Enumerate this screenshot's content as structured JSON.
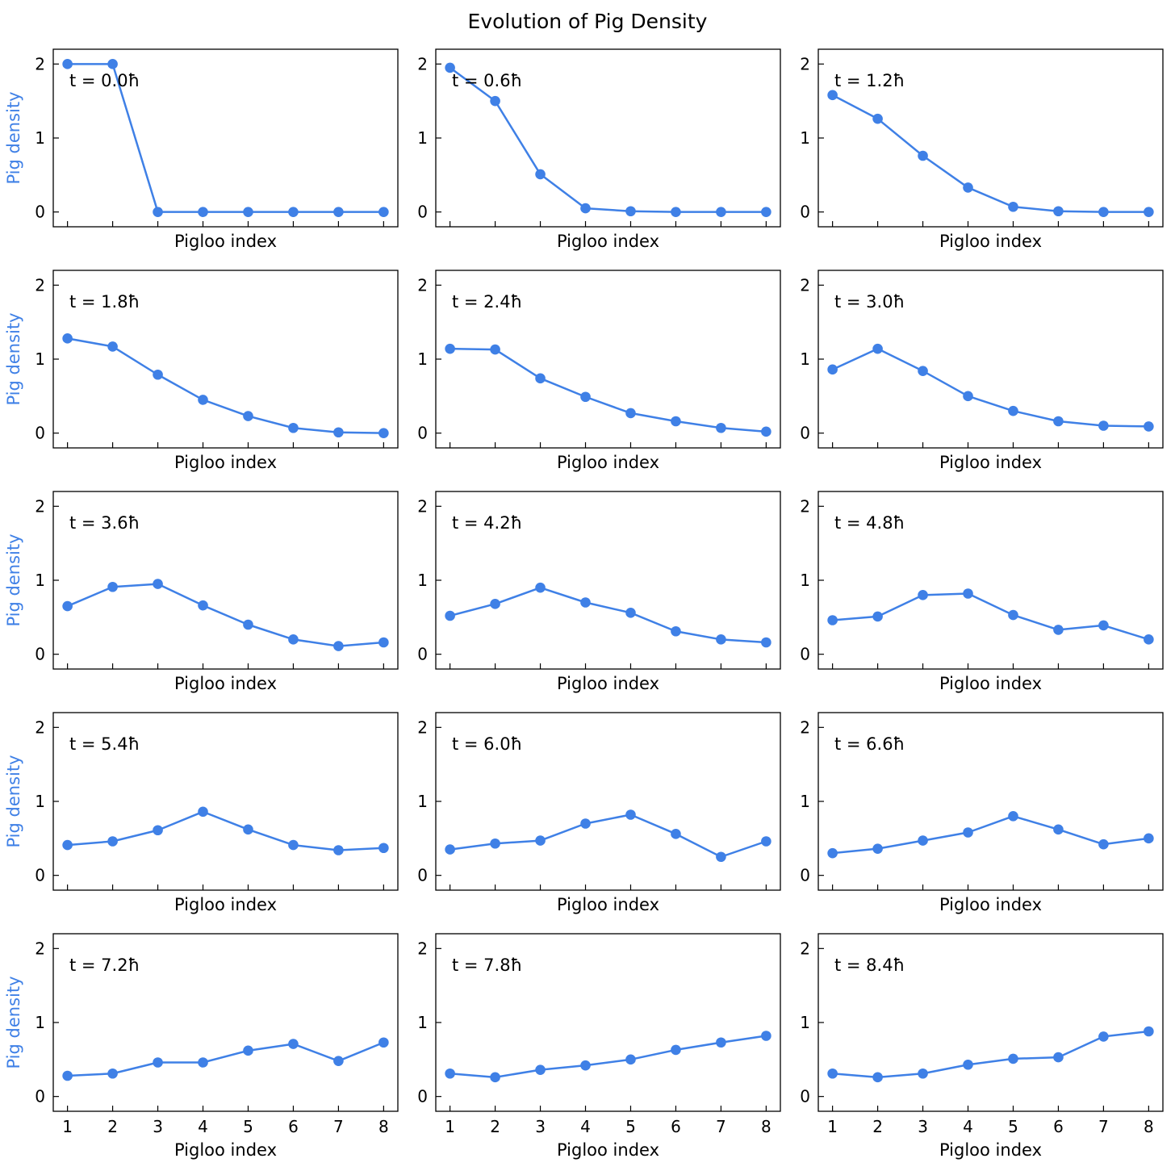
{
  "figure": {
    "title": "Evolution of Pig Density",
    "line_color": "#3F80E6",
    "ylabel_color": "#3F80E6"
  },
  "chart_data": [
    {
      "type": "line",
      "annotation": "t = 0.0ħ",
      "xlabel": "Pigloo index",
      "ylabel": "Pig density",
      "x": [
        1,
        2,
        3,
        4,
        5,
        6,
        7,
        8
      ],
      "ylim": [
        -0.2,
        2.2
      ],
      "yticks": [
        0,
        1,
        2
      ],
      "xtick_labels_shown": false,
      "values": [
        2.0,
        2.0,
        0.0,
        0.0,
        0.0,
        0.0,
        0.0,
        0.0
      ]
    },
    {
      "type": "line",
      "annotation": "t = 0.6ħ",
      "xlabel": "Pigloo index",
      "ylabel": "",
      "x": [
        1,
        2,
        3,
        4,
        5,
        6,
        7,
        8
      ],
      "ylim": [
        -0.2,
        2.2
      ],
      "yticks": [
        0,
        1,
        2
      ],
      "xtick_labels_shown": false,
      "values": [
        1.95,
        1.5,
        0.51,
        0.05,
        0.01,
        0.0,
        0.0,
        0.0
      ]
    },
    {
      "type": "line",
      "annotation": "t = 1.2ħ",
      "xlabel": "Pigloo index",
      "ylabel": "",
      "x": [
        1,
        2,
        3,
        4,
        5,
        6,
        7,
        8
      ],
      "ylim": [
        -0.2,
        2.2
      ],
      "yticks": [
        0,
        1,
        2
      ],
      "xtick_labels_shown": false,
      "values": [
        1.58,
        1.26,
        0.76,
        0.33,
        0.07,
        0.01,
        0.0,
        0.0
      ]
    },
    {
      "type": "line",
      "annotation": "t = 1.8ħ",
      "xlabel": "Pigloo index",
      "ylabel": "Pig density",
      "x": [
        1,
        2,
        3,
        4,
        5,
        6,
        7,
        8
      ],
      "ylim": [
        -0.2,
        2.2
      ],
      "yticks": [
        0,
        1,
        2
      ],
      "xtick_labels_shown": false,
      "values": [
        1.28,
        1.17,
        0.79,
        0.45,
        0.23,
        0.07,
        0.01,
        0.0
      ]
    },
    {
      "type": "line",
      "annotation": "t = 2.4ħ",
      "xlabel": "Pigloo index",
      "ylabel": "",
      "x": [
        1,
        2,
        3,
        4,
        5,
        6,
        7,
        8
      ],
      "ylim": [
        -0.2,
        2.2
      ],
      "yticks": [
        0,
        1,
        2
      ],
      "xtick_labels_shown": false,
      "values": [
        1.14,
        1.13,
        0.74,
        0.49,
        0.27,
        0.16,
        0.07,
        0.02
      ]
    },
    {
      "type": "line",
      "annotation": "t = 3.0ħ",
      "xlabel": "Pigloo index",
      "ylabel": "",
      "x": [
        1,
        2,
        3,
        4,
        5,
        6,
        7,
        8
      ],
      "ylim": [
        -0.2,
        2.2
      ],
      "yticks": [
        0,
        1,
        2
      ],
      "xtick_labels_shown": false,
      "values": [
        0.86,
        1.14,
        0.84,
        0.5,
        0.3,
        0.16,
        0.1,
        0.09
      ]
    },
    {
      "type": "line",
      "annotation": "t = 3.6ħ",
      "xlabel": "Pigloo index",
      "ylabel": "Pig density",
      "x": [
        1,
        2,
        3,
        4,
        5,
        6,
        7,
        8
      ],
      "ylim": [
        -0.2,
        2.2
      ],
      "yticks": [
        0,
        1,
        2
      ],
      "xtick_labels_shown": false,
      "values": [
        0.65,
        0.91,
        0.95,
        0.66,
        0.4,
        0.2,
        0.11,
        0.16
      ]
    },
    {
      "type": "line",
      "annotation": "t = 4.2ħ",
      "xlabel": "Pigloo index",
      "ylabel": "",
      "x": [
        1,
        2,
        3,
        4,
        5,
        6,
        7,
        8
      ],
      "ylim": [
        -0.2,
        2.2
      ],
      "yticks": [
        0,
        1,
        2
      ],
      "xtick_labels_shown": false,
      "values": [
        0.52,
        0.68,
        0.9,
        0.7,
        0.56,
        0.31,
        0.2,
        0.16
      ]
    },
    {
      "type": "line",
      "annotation": "t = 4.8ħ",
      "xlabel": "Pigloo index",
      "ylabel": "",
      "x": [
        1,
        2,
        3,
        4,
        5,
        6,
        7,
        8
      ],
      "ylim": [
        -0.2,
        2.2
      ],
      "yticks": [
        0,
        1,
        2
      ],
      "xtick_labels_shown": false,
      "values": [
        0.46,
        0.51,
        0.8,
        0.82,
        0.53,
        0.33,
        0.39,
        0.2
      ]
    },
    {
      "type": "line",
      "annotation": "t = 5.4ħ",
      "xlabel": "Pigloo index",
      "ylabel": "Pig density",
      "x": [
        1,
        2,
        3,
        4,
        5,
        6,
        7,
        8
      ],
      "ylim": [
        -0.2,
        2.2
      ],
      "yticks": [
        0,
        1,
        2
      ],
      "xtick_labels_shown": false,
      "values": [
        0.41,
        0.46,
        0.61,
        0.86,
        0.62,
        0.41,
        0.34,
        0.37
      ]
    },
    {
      "type": "line",
      "annotation": "t = 6.0ħ",
      "xlabel": "Pigloo index",
      "ylabel": "",
      "x": [
        1,
        2,
        3,
        4,
        5,
        6,
        7,
        8
      ],
      "ylim": [
        -0.2,
        2.2
      ],
      "yticks": [
        0,
        1,
        2
      ],
      "xtick_labels_shown": false,
      "values": [
        0.35,
        0.43,
        0.47,
        0.7,
        0.82,
        0.56,
        0.25,
        0.46
      ]
    },
    {
      "type": "line",
      "annotation": "t = 6.6ħ",
      "xlabel": "Pigloo index",
      "ylabel": "",
      "x": [
        1,
        2,
        3,
        4,
        5,
        6,
        7,
        8
      ],
      "ylim": [
        -0.2,
        2.2
      ],
      "yticks": [
        0,
        1,
        2
      ],
      "xtick_labels_shown": false,
      "values": [
        0.3,
        0.36,
        0.47,
        0.58,
        0.8,
        0.62,
        0.42,
        0.5
      ]
    },
    {
      "type": "line",
      "annotation": "t = 7.2ħ",
      "xlabel": "Pigloo index",
      "ylabel": "Pig density",
      "x": [
        1,
        2,
        3,
        4,
        5,
        6,
        7,
        8
      ],
      "ylim": [
        -0.2,
        2.2
      ],
      "yticks": [
        0,
        1,
        2
      ],
      "xtick_labels_shown": true,
      "values": [
        0.28,
        0.31,
        0.46,
        0.46,
        0.62,
        0.71,
        0.48,
        0.73
      ]
    },
    {
      "type": "line",
      "annotation": "t = 7.8ħ",
      "xlabel": "Pigloo index",
      "ylabel": "",
      "x": [
        1,
        2,
        3,
        4,
        5,
        6,
        7,
        8
      ],
      "ylim": [
        -0.2,
        2.2
      ],
      "yticks": [
        0,
        1,
        2
      ],
      "xtick_labels_shown": true,
      "values": [
        0.31,
        0.26,
        0.36,
        0.42,
        0.5,
        0.63,
        0.73,
        0.82
      ]
    },
    {
      "type": "line",
      "annotation": "t = 8.4ħ",
      "xlabel": "Pigloo index",
      "ylabel": "",
      "x": [
        1,
        2,
        3,
        4,
        5,
        6,
        7,
        8
      ],
      "ylim": [
        -0.2,
        2.2
      ],
      "yticks": [
        0,
        1,
        2
      ],
      "xtick_labels_shown": true,
      "values": [
        0.31,
        0.26,
        0.31,
        0.43,
        0.51,
        0.53,
        0.81,
        0.88
      ]
    }
  ]
}
